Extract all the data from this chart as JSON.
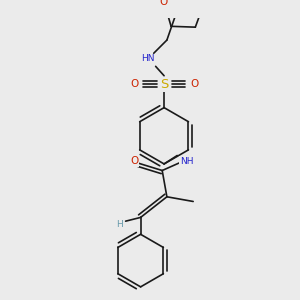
{
  "bg_color": "#ebebeb",
  "bond_color": "#1a1a1a",
  "bond_width": 1.2,
  "dbo": 0.035,
  "atom_colors": {
    "N": "#2222cc",
    "O": "#cc2200",
    "S": "#ccaa00",
    "H": "#6699aa"
  },
  "font_size": 6.5,
  "fig_size": [
    3.0,
    3.0
  ],
  "dpi": 100
}
